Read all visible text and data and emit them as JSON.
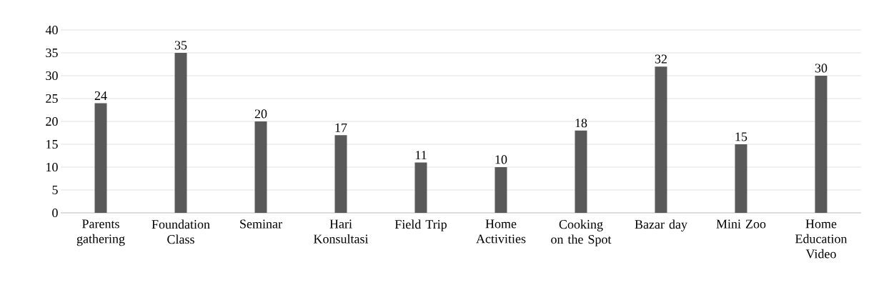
{
  "chart_data": {
    "type": "bar",
    "categories": [
      "Parents gathering",
      "Foundation Class",
      "Seminar",
      "Hari Konsultasi",
      "Field Trip",
      "Home Activities",
      "Cooking on the Spot",
      "Bazar day",
      "Mini Zoo",
      "Home Education Video"
    ],
    "values": [
      24,
      35,
      20,
      17,
      11,
      10,
      18,
      32,
      15,
      30
    ],
    "color": "#595959",
    "ylim": [
      0,
      40
    ],
    "yticks": [
      0,
      5,
      10,
      15,
      20,
      25,
      30,
      35,
      40
    ],
    "grid": "y",
    "data_labels": true
  }
}
